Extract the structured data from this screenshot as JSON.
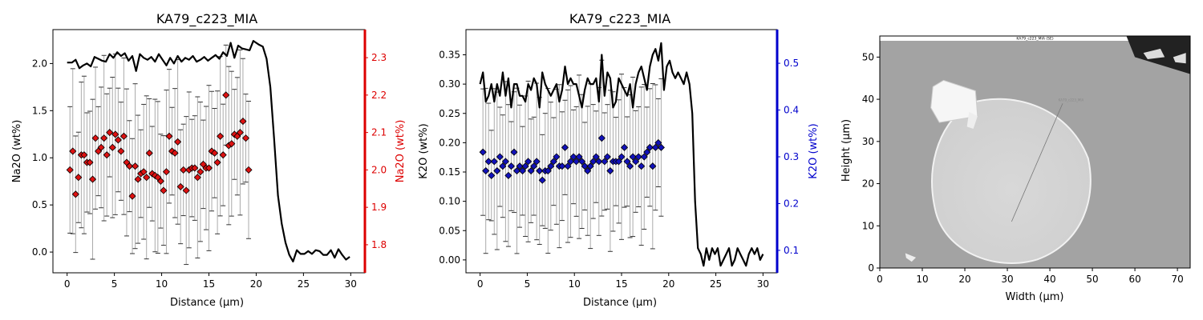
{
  "chart_data": [
    {
      "type": "line",
      "title": "KA79_c223_MIA",
      "xlabel": "Distance (µm)",
      "ylabel": "Na2O (wt%)",
      "ylabel_right": "Na2O (wt%)",
      "right_axis_color": "#dd0000",
      "marker_color": "#dd1111",
      "xlim": [
        -1.5,
        31.5
      ],
      "ylim": [
        -0.22,
        2.36
      ],
      "ylim_right": [
        1.725,
        2.375
      ],
      "x_ticks": [
        0,
        5,
        10,
        15,
        20,
        25,
        30
      ],
      "y_ticks": [
        0.0,
        0.5,
        1.0,
        1.5,
        2.0
      ],
      "y_ticks_right": [
        1.8,
        1.9,
        2.0,
        2.1,
        2.2,
        2.3
      ],
      "series": [
        {
          "kind": "line",
          "x": [
            0,
            0.5,
            0.9,
            1.3,
            1.7,
            2.1,
            2.5,
            2.9,
            3.3,
            3.7,
            4.1,
            4.5,
            4.9,
            5.3,
            5.7,
            6.1,
            6.5,
            6.9,
            7.3,
            7.7,
            8.1,
            8.5,
            8.9,
            9.3,
            9.7,
            10.1,
            10.5,
            10.9,
            11.3,
            11.7,
            12.1,
            12.5,
            12.9,
            13.3,
            13.7,
            14.1,
            14.5,
            14.9,
            15.3,
            15.7,
            16.1,
            16.5,
            16.9,
            17.3,
            17.7,
            18.1,
            18.5,
            18.9,
            19.3,
            19.7,
            20.0,
            20.3,
            20.7,
            21.1,
            21.5,
            21.9,
            22.3,
            22.7,
            23.1,
            23.5,
            23.9,
            24.3,
            24.7,
            25.1,
            25.5,
            25.9,
            26.3,
            26.7,
            27.1,
            27.5,
            27.9,
            28.3,
            28.7,
            29.1,
            29.5,
            29.9
          ],
          "y": [
            2.01,
            2.01,
            2.04,
            1.95,
            1.98,
            2.0,
            1.97,
            2.07,
            2.05,
            2.03,
            2.02,
            2.1,
            2.06,
            2.12,
            2.08,
            2.11,
            2.03,
            2.08,
            1.92,
            2.1,
            2.06,
            2.04,
            2.07,
            2.02,
            2.1,
            2.04,
            1.98,
            2.06,
            2.0,
            2.08,
            2.02,
            2.06,
            2.04,
            2.08,
            2.02,
            2.04,
            2.07,
            2.03,
            2.06,
            2.09,
            2.05,
            2.12,
            2.08,
            2.22,
            2.06,
            2.19,
            2.16,
            2.15,
            2.14,
            2.24,
            2.22,
            2.2,
            2.18,
            2.05,
            1.75,
            1.2,
            0.6,
            0.3,
            0.1,
            -0.03,
            -0.1,
            0.02,
            -0.02,
            -0.02,
            0.01,
            -0.02,
            0.02,
            0.01,
            -0.03,
            -0.03,
            0.02,
            -0.06,
            0.03,
            -0.03,
            -0.08,
            -0.05
          ]
        },
        {
          "kind": "points",
          "axis": "right",
          "x": [
            0.3,
            0.6,
            0.9,
            1.2,
            1.5,
            1.8,
            2.1,
            2.4,
            2.7,
            3.0,
            3.3,
            3.6,
            3.9,
            4.2,
            4.5,
            4.8,
            5.1,
            5.4,
            5.7,
            6.0,
            6.3,
            6.6,
            6.9,
            7.2,
            7.5,
            7.8,
            8.1,
            8.4,
            8.7,
            9.0,
            9.3,
            9.6,
            9.9,
            10.2,
            10.5,
            10.8,
            11.1,
            11.4,
            11.7,
            12.0,
            12.3,
            12.6,
            12.9,
            13.2,
            13.5,
            13.8,
            14.1,
            14.4,
            14.7,
            15.0,
            15.3,
            15.6,
            15.9,
            16.2,
            16.5,
            16.8,
            17.1,
            17.4,
            17.7,
            18.0,
            18.3,
            18.6,
            18.9,
            19.2
          ],
          "y": [
            2.0,
            2.05,
            1.935,
            1.98,
            2.04,
            2.04,
            2.02,
            2.02,
            1.975,
            2.085,
            2.05,
            2.06,
            2.085,
            2.04,
            2.1,
            2.06,
            2.095,
            2.08,
            2.05,
            2.09,
            2.02,
            2.01,
            1.93,
            2.01,
            1.975,
            1.99,
            1.995,
            1.98,
            2.045,
            1.99,
            1.985,
            1.98,
            1.97,
            1.945,
            1.995,
            2.09,
            2.05,
            2.045,
            2.075,
            1.955,
            2.0,
            1.945,
            2.0,
            2.005,
            2.005,
            1.98,
            1.995,
            2.015,
            2.005,
            2.005,
            2.05,
            2.045,
            2.02,
            2.09,
            2.04,
            2.2,
            2.065,
            2.07,
            2.095,
            2.09,
            2.1,
            2.13,
            2.085,
            2.0
          ]
        }
      ]
    },
    {
      "type": "line",
      "title": "KA79_c223_MIA",
      "xlabel": "Distance (µm)",
      "ylabel": "K2O (wt%)",
      "ylabel_right": "K2O (wt%)",
      "right_axis_color": "#0000cc",
      "marker_color": "#1111bb",
      "xlim": [
        -1.5,
        31.5
      ],
      "ylim": [
        -0.022,
        0.393
      ],
      "ylim_right": [
        0.052,
        0.572
      ],
      "x_ticks": [
        0,
        5,
        10,
        15,
        20,
        25,
        30
      ],
      "y_ticks": [
        0.0,
        0.05,
        0.1,
        0.15,
        0.2,
        0.25,
        0.3,
        0.35
      ],
      "y_ticks_right": [
        0.1,
        0.2,
        0.3,
        0.4,
        0.5
      ],
      "series": [
        {
          "kind": "line",
          "x": [
            0,
            0.3,
            0.6,
            0.9,
            1.2,
            1.5,
            1.8,
            2.1,
            2.4,
            2.7,
            3.0,
            3.3,
            3.6,
            3.9,
            4.2,
            4.5,
            4.8,
            5.1,
            5.4,
            5.7,
            6.0,
            6.3,
            6.6,
            6.9,
            7.2,
            7.5,
            7.8,
            8.1,
            8.4,
            8.7,
            9.0,
            9.3,
            9.6,
            9.9,
            10.2,
            10.5,
            10.8,
            11.1,
            11.4,
            11.7,
            12.0,
            12.3,
            12.6,
            12.9,
            13.2,
            13.5,
            13.8,
            14.1,
            14.4,
            14.7,
            15.0,
            15.3,
            15.6,
            15.9,
            16.2,
            16.5,
            16.8,
            17.1,
            17.4,
            17.7,
            18.0,
            18.3,
            18.6,
            18.9,
            19.2,
            19.5,
            19.8,
            20.1,
            20.4,
            20.7,
            21.0,
            21.3,
            21.6,
            21.9,
            22.2,
            22.5,
            22.8,
            23.1,
            23.4,
            23.7,
            24.0,
            24.3,
            24.6,
            24.9,
            25.2,
            25.5,
            25.8,
            26.1,
            26.4,
            26.7,
            27.0,
            27.3,
            27.6,
            27.9,
            28.2,
            28.5,
            28.8,
            29.1,
            29.4,
            29.7,
            30.0
          ],
          "y": [
            0.3,
            0.32,
            0.27,
            0.28,
            0.3,
            0.27,
            0.3,
            0.28,
            0.32,
            0.28,
            0.31,
            0.26,
            0.3,
            0.3,
            0.28,
            0.28,
            0.27,
            0.3,
            0.29,
            0.31,
            0.3,
            0.26,
            0.32,
            0.3,
            0.29,
            0.28,
            0.29,
            0.3,
            0.27,
            0.29,
            0.33,
            0.3,
            0.31,
            0.3,
            0.3,
            0.28,
            0.26,
            0.29,
            0.31,
            0.3,
            0.3,
            0.31,
            0.27,
            0.35,
            0.28,
            0.32,
            0.31,
            0.26,
            0.27,
            0.31,
            0.3,
            0.29,
            0.28,
            0.3,
            0.26,
            0.3,
            0.32,
            0.33,
            0.31,
            0.29,
            0.33,
            0.35,
            0.36,
            0.34,
            0.37,
            0.29,
            0.33,
            0.34,
            0.32,
            0.31,
            0.32,
            0.31,
            0.3,
            0.32,
            0.3,
            0.25,
            0.1,
            0.02,
            0.01,
            -0.01,
            0.02,
            0.0,
            0.02,
            0.01,
            0.02,
            -0.01,
            0.0,
            0.01,
            0.02,
            -0.01,
            0.0,
            0.02,
            0.01,
            0.0,
            -0.01,
            0.01,
            0.02,
            0.01,
            0.02,
            0.0,
            0.01
          ]
        },
        {
          "kind": "points",
          "axis": "right",
          "x": [
            0.3,
            0.6,
            0.9,
            1.2,
            1.5,
            1.8,
            2.1,
            2.4,
            2.7,
            3.0,
            3.3,
            3.6,
            3.9,
            4.2,
            4.5,
            4.8,
            5.1,
            5.4,
            5.7,
            6.0,
            6.3,
            6.6,
            6.9,
            7.2,
            7.5,
            7.8,
            8.1,
            8.4,
            8.7,
            9.0,
            9.3,
            9.6,
            9.9,
            10.2,
            10.5,
            10.8,
            11.1,
            11.4,
            11.7,
            12.0,
            12.3,
            12.6,
            12.9,
            13.2,
            13.5,
            13.8,
            14.1,
            14.4,
            14.7,
            15.0,
            15.3,
            15.6,
            15.9,
            16.2,
            16.5,
            16.8,
            17.1,
            17.4,
            17.7,
            18.0,
            18.3,
            18.6,
            18.9,
            19.2
          ],
          "y": [
            0.31,
            0.27,
            0.29,
            0.26,
            0.29,
            0.27,
            0.3,
            0.28,
            0.29,
            0.26,
            0.28,
            0.31,
            0.27,
            0.28,
            0.27,
            0.28,
            0.29,
            0.27,
            0.28,
            0.29,
            0.27,
            0.25,
            0.27,
            0.27,
            0.28,
            0.29,
            0.3,
            0.28,
            0.28,
            0.32,
            0.28,
            0.29,
            0.3,
            0.29,
            0.3,
            0.29,
            0.28,
            0.27,
            0.28,
            0.29,
            0.3,
            0.29,
            0.34,
            0.29,
            0.3,
            0.27,
            0.29,
            0.29,
            0.29,
            0.3,
            0.32,
            0.29,
            0.28,
            0.3,
            0.29,
            0.3,
            0.28,
            0.3,
            0.31,
            0.32,
            0.28,
            0.32,
            0.33,
            0.32
          ]
        }
      ]
    },
    {
      "type": "image",
      "title": "KA79_c223_MIA (SE)",
      "xlabel": "Width (µm)",
      "ylabel": "Height (µm)",
      "xlim": [
        0,
        73
      ],
      "ylim": [
        0,
        55
      ],
      "x_ticks": [
        0,
        10,
        20,
        30,
        40,
        50,
        60,
        70
      ],
      "y_ticks": [
        0,
        10,
        20,
        30,
        40,
        50
      ],
      "line_label": "KA79_c223_MIA",
      "line_endpoints": {
        "x": [
          31,
          43
        ],
        "y": [
          11,
          39
        ]
      }
    }
  ]
}
